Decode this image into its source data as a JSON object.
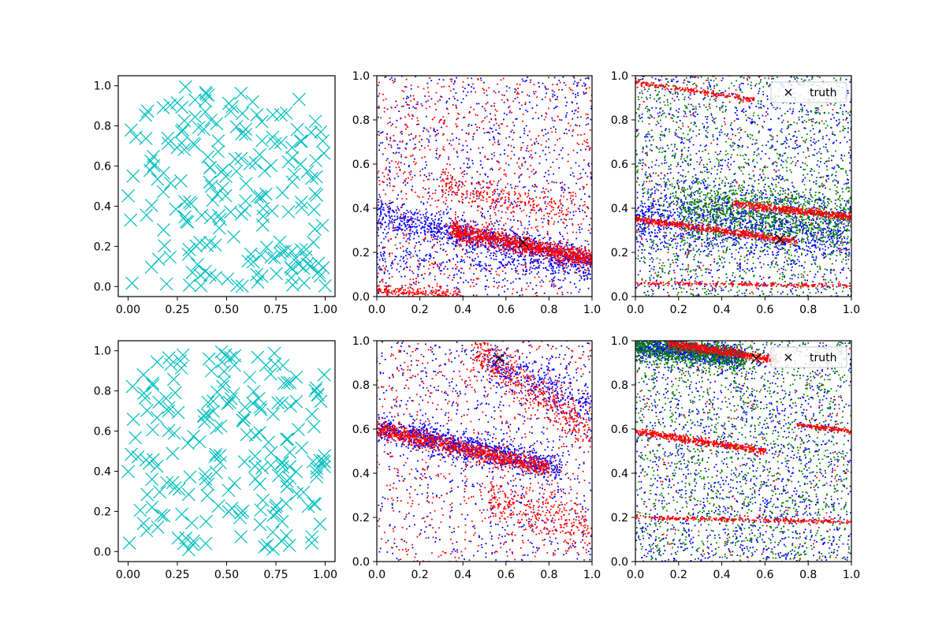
{
  "figure": {
    "rows": 2,
    "cols": 3
  },
  "chart_data": [
    {
      "panel": "row1-col1",
      "type": "scatter",
      "title": "",
      "xlabel": "",
      "ylabel": "",
      "xlim": [
        -0.05,
        1.05
      ],
      "ylim": [
        -0.05,
        1.05
      ],
      "xticks": [
        "0.00",
        "0.25",
        "0.50",
        "0.75",
        "1.00"
      ],
      "yticks": [
        "0.0",
        "0.2",
        "0.4",
        "0.6",
        "0.8",
        "1.0"
      ],
      "grid": false,
      "series": [
        {
          "marker": "x",
          "color": "#00bfbf",
          "count": 200,
          "distribution": "uniform random in [0,1] x [0,1]"
        }
      ]
    },
    {
      "panel": "row1-col2",
      "type": "scatter",
      "title": "",
      "xlabel": "",
      "ylabel": "",
      "xlim": [
        0,
        1
      ],
      "ylim": [
        0,
        1
      ],
      "xticks": [
        "0.0",
        "0.2",
        "0.4",
        "0.6",
        "0.8",
        "1.0"
      ],
      "yticks": [
        "0.0",
        "0.2",
        "0.4",
        "0.6",
        "0.8",
        "1.0"
      ],
      "grid": false,
      "series": [
        {
          "marker": "dot",
          "color": "#0000ff",
          "count": 2200,
          "bands": [
            {
              "x0": 0.0,
              "y0": 0.37,
              "x1": 1.0,
              "y1": 0.15,
              "weight": 0.45,
              "spread": 0.035
            },
            {
              "x0": 0.0,
              "y0": 0.17,
              "x1": 1.0,
              "y1": 0.12,
              "weight": 0.1,
              "spread": 0.03
            }
          ]
        },
        {
          "marker": "dot",
          "color": "#ff0000",
          "count": 2400,
          "bands": [
            {
              "x0": 0.35,
              "y0": 0.3,
              "x1": 1.0,
              "y1": 0.17,
              "weight": 0.45,
              "spread": 0.02
            },
            {
              "x0": 0.0,
              "y0": 0.03,
              "x1": 0.4,
              "y1": 0.0,
              "weight": 0.08,
              "spread": 0.015
            },
            {
              "x0": 0.3,
              "y0": 0.5,
              "x1": 0.9,
              "y1": 0.38,
              "weight": 0.1,
              "spread": 0.03
            }
          ]
        }
      ],
      "truth": [
        0.68,
        0.245
      ]
    },
    {
      "panel": "row1-col3",
      "type": "scatter",
      "title": "",
      "xlabel": "",
      "ylabel": "",
      "xlim": [
        0,
        1
      ],
      "ylim": [
        0,
        1
      ],
      "xticks": [
        "0.0",
        "0.2",
        "0.4",
        "0.6",
        "0.8",
        "1.0"
      ],
      "yticks": [
        "0.0",
        "0.2",
        "0.4",
        "0.6",
        "0.8",
        "1.0"
      ],
      "grid": false,
      "legend": {
        "label": "truth",
        "position": "upper right"
      },
      "series": [
        {
          "marker": "dot",
          "color": "#0000ff",
          "count": 2400,
          "bands": [
            {
              "x0": 0.0,
              "y0": 0.35,
              "x1": 1.0,
              "y1": 0.3,
              "weight": 0.45,
              "spread": 0.07
            }
          ]
        },
        {
          "marker": "dot",
          "color": "#008000",
          "count": 2200,
          "bands": [
            {
              "x0": 0.2,
              "y0": 0.4,
              "x1": 1.0,
              "y1": 0.35,
              "weight": 0.45,
              "spread": 0.07
            }
          ]
        },
        {
          "marker": "dot",
          "color": "#ff0000",
          "count": 1600,
          "bands": [
            {
              "x0": 0.0,
              "y0": 0.35,
              "x1": 0.75,
              "y1": 0.25,
              "weight": 0.35,
              "spread": 0.008
            },
            {
              "x0": 0.45,
              "y0": 0.42,
              "x1": 1.0,
              "y1": 0.36,
              "weight": 0.3,
              "spread": 0.008
            },
            {
              "x0": 0.0,
              "y0": 0.97,
              "x1": 0.55,
              "y1": 0.89,
              "weight": 0.12,
              "spread": 0.006
            },
            {
              "x0": 0.0,
              "y0": 0.06,
              "x1": 1.0,
              "y1": 0.05,
              "weight": 0.13,
              "spread": 0.005
            }
          ]
        }
      ],
      "truth": [
        0.67,
        0.26
      ]
    },
    {
      "panel": "row2-col1",
      "type": "scatter",
      "title": "",
      "xlabel": "",
      "ylabel": "",
      "xlim": [
        -0.05,
        1.05
      ],
      "ylim": [
        -0.05,
        1.05
      ],
      "xticks": [
        "0.00",
        "0.25",
        "0.50",
        "0.75",
        "1.00"
      ],
      "yticks": [
        "0.0",
        "0.2",
        "0.4",
        "0.6",
        "0.8",
        "1.0"
      ],
      "grid": false,
      "series": [
        {
          "marker": "x",
          "color": "#00bfbf",
          "count": 200,
          "distribution": "uniform random in [0,1] x [0,1]"
        }
      ]
    },
    {
      "panel": "row2-col2",
      "type": "scatter",
      "title": "",
      "xlabel": "",
      "ylabel": "",
      "xlim": [
        0,
        1
      ],
      "ylim": [
        0,
        1
      ],
      "xticks": [
        "0.0",
        "0.2",
        "0.4",
        "0.6",
        "0.8",
        "1.0"
      ],
      "yticks": [
        "0.0",
        "0.2",
        "0.4",
        "0.6",
        "0.8",
        "1.0"
      ],
      "grid": false,
      "series": [
        {
          "marker": "dot",
          "color": "#0000ff",
          "count": 2200,
          "bands": [
            {
              "x0": 0.0,
              "y0": 0.61,
              "x1": 0.85,
              "y1": 0.42,
              "weight": 0.5,
              "spread": 0.03
            },
            {
              "x0": 0.5,
              "y0": 0.92,
              "x1": 1.0,
              "y1": 0.7,
              "weight": 0.15,
              "spread": 0.05
            }
          ]
        },
        {
          "marker": "dot",
          "color": "#ff0000",
          "count": 2400,
          "bands": [
            {
              "x0": 0.0,
              "y0": 0.6,
              "x1": 0.8,
              "y1": 0.42,
              "weight": 0.4,
              "spread": 0.02
            },
            {
              "x0": 0.45,
              "y0": 0.95,
              "x1": 1.0,
              "y1": 0.6,
              "weight": 0.2,
              "spread": 0.05
            },
            {
              "x0": 0.5,
              "y0": 0.28,
              "x1": 1.0,
              "y1": 0.15,
              "weight": 0.15,
              "spread": 0.06
            }
          ]
        }
      ],
      "truth": [
        0.57,
        0.92
      ]
    },
    {
      "panel": "row2-col3",
      "type": "scatter",
      "title": "",
      "xlabel": "",
      "ylabel": "",
      "xlim": [
        0,
        1
      ],
      "ylim": [
        0,
        1
      ],
      "xticks": [
        "0.0",
        "0.2",
        "0.4",
        "0.6",
        "0.8",
        "1.0"
      ],
      "yticks": [
        "0.0",
        "0.2",
        "0.4",
        "0.6",
        "0.8",
        "1.0"
      ],
      "grid": false,
      "legend": {
        "label": "truth",
        "position": "upper right"
      },
      "series": [
        {
          "marker": "dot",
          "color": "#0000ff",
          "count": 2400,
          "bands": [
            {
              "x0": 0.0,
              "y0": 0.97,
              "x1": 0.5,
              "y1": 0.93,
              "weight": 0.4,
              "spread": 0.025
            }
          ]
        },
        {
          "marker": "dot",
          "color": "#008000",
          "count": 2200,
          "bands": [
            {
              "x0": 0.0,
              "y0": 0.97,
              "x1": 0.5,
              "y1": 0.92,
              "weight": 0.35,
              "spread": 0.03
            }
          ]
        },
        {
          "marker": "dot",
          "color": "#ff0000",
          "count": 1600,
          "bands": [
            {
              "x0": 0.15,
              "y0": 0.99,
              "x1": 0.65,
              "y1": 0.91,
              "weight": 0.35,
              "spread": 0.01
            },
            {
              "x0": 0.0,
              "y0": 0.59,
              "x1": 0.6,
              "y1": 0.5,
              "weight": 0.3,
              "spread": 0.008
            },
            {
              "x0": 0.75,
              "y0": 0.62,
              "x1": 1.0,
              "y1": 0.59,
              "weight": 0.08,
              "spread": 0.005
            },
            {
              "x0": 0.0,
              "y0": 0.2,
              "x1": 1.0,
              "y1": 0.18,
              "weight": 0.17,
              "spread": 0.005
            }
          ]
        }
      ],
      "truth": [
        0.56,
        0.92
      ]
    }
  ]
}
